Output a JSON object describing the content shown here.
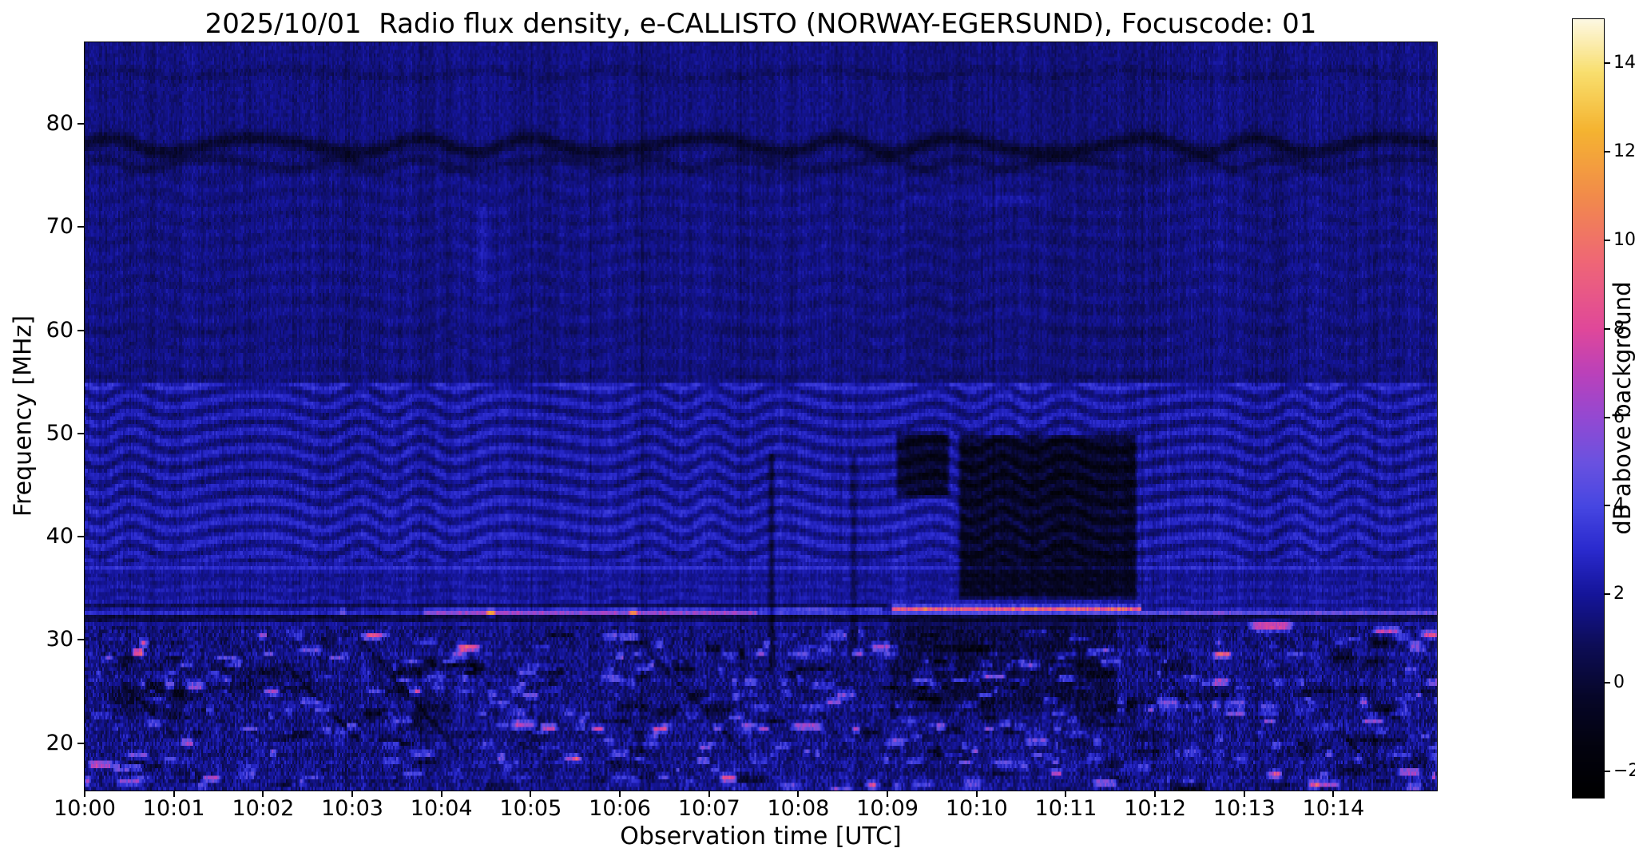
{
  "chart_data": {
    "type": "heatmap",
    "title": "2025/10/01  Radio flux density, e-CALLISTO (NORWAY-EGERSUND), Focuscode: 01",
    "xlabel": "Observation time [UTC]",
    "ylabel": "Frequency [MHz]",
    "x_ticks": [
      "10:00",
      "10:01",
      "10:02",
      "10:03",
      "10:04",
      "10:05",
      "10:06",
      "10:07",
      "10:08",
      "10:09",
      "10:10",
      "10:11",
      "10:12",
      "10:13",
      "10:14"
    ],
    "x_tick_minutes": [
      0,
      1,
      2,
      3,
      4,
      5,
      6,
      7,
      8,
      9,
      10,
      11,
      12,
      13,
      14
    ],
    "x_range_minutes": [
      0,
      15.16
    ],
    "y_ticks_mhz": [
      80,
      70,
      60,
      50,
      40,
      30,
      20
    ],
    "y_range_mhz": [
      15.4,
      87.9
    ],
    "colorbar": {
      "label": "dB above background",
      "tick_values": [
        14,
        12,
        10,
        8,
        6,
        4,
        2,
        0,
        -2
      ],
      "tick_labels": [
        "14",
        "12",
        "10",
        "8",
        "6",
        "4",
        "2",
        "0",
        "−2"
      ],
      "range_db": [
        -2.6,
        15
      ],
      "colormap": "cmrmap-like",
      "stops": [
        [
          -2.6,
          "#000000"
        ],
        [
          -1.4,
          "#030310"
        ],
        [
          -0.3,
          "#07072a"
        ],
        [
          0.8,
          "#0d0d55"
        ],
        [
          2.0,
          "#15159a"
        ],
        [
          3.0,
          "#2a2ace"
        ],
        [
          4.0,
          "#4747e2"
        ],
        [
          5.0,
          "#6b52e0"
        ],
        [
          6.0,
          "#9449d2"
        ],
        [
          7.0,
          "#bb41ba"
        ],
        [
          8.0,
          "#e0489a"
        ],
        [
          9.5,
          "#ef6677"
        ],
        [
          11.0,
          "#f28b4b"
        ],
        [
          12.5,
          "#f5b431"
        ],
        [
          13.8,
          "#f9df6e"
        ],
        [
          15.0,
          "#fdf8e2"
        ]
      ]
    },
    "features": {
      "seed": 42,
      "t_range": [
        0,
        15.16
      ],
      "f_range": [
        15.4,
        87.9
      ],
      "base_level_db": 1.9,
      "noise_db": 0.45,
      "column_noise_db": 0.55,
      "low_freq_below": 31.2,
      "low_freq_noise_scale": 2.3,
      "regions": [
        {
          "f": [
            55,
            87.9
          ],
          "delta": -0.35
        },
        {
          "f": [
            33.5,
            55
          ],
          "delta": 0.15
        },
        {
          "f": [
            38.5,
            43.5
          ],
          "delta": 0.2
        },
        {
          "f": [
            15.4,
            31.2
          ],
          "delta": -0.45
        },
        {
          "f": [
            55,
            87.9
          ],
          "t": [
            9.0,
            11.9
          ],
          "delta": -0.12
        }
      ],
      "ripples": [
        {
          "f": [
            37.5,
            55
          ],
          "amp": 0.8,
          "period_mhz": 1.7,
          "wobble": 2.2,
          "t_period": 1.05
        },
        {
          "f": [
            55,
            76
          ],
          "amp": 0.22,
          "period_mhz": 2.1,
          "wobble": 1.6,
          "t_period": 1.4
        },
        {
          "f": [
            31,
            36
          ],
          "amp": 0.3,
          "period_mhz": 1.2,
          "wobble": 1.5,
          "t_period": 0.9
        }
      ],
      "wavy_dark_lines": [
        {
          "f": 77.9,
          "amp": -1.7,
          "width": 0.7,
          "wobble_mhz": 0.7,
          "t_period": 1.6
        },
        {
          "f": 76.1,
          "amp": -0.8,
          "width": 0.5,
          "wobble_mhz": 0.5,
          "t_period": 1.2
        },
        {
          "f": 84.8,
          "amp": -0.5,
          "width": 0.5,
          "wobble_mhz": 0.4,
          "t_period": 1.9
        }
      ],
      "hlines": [
        {
          "f": 54.6,
          "amp": 0.7,
          "width": 0.3
        },
        {
          "f": 55.3,
          "amp": -0.45,
          "width": 0.3
        },
        {
          "f": 59.8,
          "amp": -0.25,
          "width": 0.4
        },
        {
          "f": 36.9,
          "amp": 1.1,
          "width": 0.25
        },
        {
          "f": 36.4,
          "amp": -0.6,
          "width": 0.18
        },
        {
          "f": 32.75,
          "amp": 1.6,
          "width": 0.2
        },
        {
          "f": 32.1,
          "amp": -1.9,
          "width": 0.35
        },
        {
          "f": 33.3,
          "amp": -1.0,
          "width": 0.25,
          "t": [
            0,
            9.0
          ]
        },
        {
          "f": 73.0,
          "amp": 0.65,
          "width": 0.3,
          "t": [
            9.2,
            11.0
          ]
        },
        {
          "f": 72.4,
          "amp": 0.4,
          "width": 0.25,
          "t": [
            9.3,
            10.9
          ]
        }
      ],
      "line_segments_33mhz": [
        {
          "t": [
            3.8,
            7.55
          ],
          "f": 32.7,
          "amp": 3.4,
          "width": 0.25
        },
        {
          "t": [
            7.55,
            8.95
          ],
          "f": 32.85,
          "amp": 2.2,
          "width": 0.22
        },
        {
          "t": [
            9.05,
            11.85
          ],
          "f": 33.0,
          "amp": 6.8,
          "width": 0.3
        },
        {
          "t": [
            11.85,
            15.16
          ],
          "f": 32.6,
          "amp": 1.8,
          "width": 0.22
        }
      ],
      "dark_patches": [
        {
          "t": [
            9.07,
            9.72
          ],
          "f": [
            43.5,
            50.5
          ],
          "depth": -2.6,
          "striation": 0.5
        },
        {
          "t": [
            9.78,
            11.82
          ],
          "f": [
            33.6,
            50.2
          ],
          "depth": -2.8,
          "striation": 0.6
        },
        {
          "t": [
            9.0,
            11.6
          ],
          "f": [
            22.5,
            32.5
          ],
          "depth": -1.1,
          "striation": 0
        },
        {
          "t": [
            0.25,
            1.15
          ],
          "f": [
            22.5,
            26.0
          ],
          "depth": -1.0,
          "striation": 0
        },
        {
          "t": [
            1.5,
            2.6
          ],
          "f": [
            24.5,
            27.5
          ],
          "depth": -0.8,
          "striation": 0
        }
      ],
      "vlines": [
        {
          "t": 7.7,
          "f": [
            27,
            48
          ],
          "amp": -1.8,
          "width": 0.03
        },
        {
          "t": 8.62,
          "f": [
            27,
            48
          ],
          "amp": -1.5,
          "width": 0.03
        },
        {
          "t": 4.45,
          "f": [
            64,
            72
          ],
          "amp": 0.5,
          "width": 0.08
        }
      ],
      "diagonal_sweeps": [
        {
          "t0": 0.4,
          "f0": 26,
          "t1": 1.2,
          "f1": 19,
          "w": 0.3,
          "amp": -1.0
        },
        {
          "t0": 2.2,
          "f0": 28,
          "t1": 3.1,
          "f1": 20,
          "w": 0.35,
          "amp": -1.2
        },
        {
          "t0": 3.1,
          "f0": 30,
          "t1": 4.2,
          "f1": 19,
          "w": 0.4,
          "amp": -1.4
        },
        {
          "t0": 4.3,
          "f0": 28,
          "t1": 5.1,
          "f1": 20,
          "w": 0.3,
          "amp": -1.0
        },
        {
          "t0": 6.3,
          "f0": 29,
          "t1": 7.3,
          "f1": 20,
          "w": 0.35,
          "amp": -1.3
        },
        {
          "t0": 7.9,
          "f0": 27,
          "t1": 8.6,
          "f1": 19,
          "w": 0.3,
          "amp": -1.0
        },
        {
          "t0": 12.1,
          "f0": 27,
          "t1": 12.9,
          "f1": 18,
          "w": 0.3,
          "amp": -1.1
        },
        {
          "t0": 13.6,
          "f0": 26,
          "t1": 14.4,
          "f1": 18,
          "w": 0.3,
          "amp": -1.0
        }
      ],
      "texture_bands": {
        "freqs": [
          28.6,
          26.1,
          23.6,
          21.5,
          19.8,
          18.1,
          16.6,
          15.8
        ],
        "amp": 0.42,
        "width": 0.3
      },
      "bright_spots": [
        {
          "t": 0.18,
          "f": 17.9,
          "len": 0.3,
          "amp": 6.5
        },
        {
          "t": 0.5,
          "f": 16.2,
          "len": 0.3,
          "amp": 4.5
        },
        {
          "t": 0.95,
          "f": 25.6,
          "len": 0.12,
          "amp": 5.0
        },
        {
          "t": 2.0,
          "f": 30.4,
          "len": 0.1,
          "amp": 4.5
        },
        {
          "t": 2.9,
          "f": 32.8,
          "len": 0.08,
          "amp": 3.0
        },
        {
          "t": 3.0,
          "f": 21.7,
          "len": 0.15,
          "amp": 4.0
        },
        {
          "t": 3.75,
          "f": 25.0,
          "len": 0.1,
          "amp": 3.5
        },
        {
          "t": 4.55,
          "f": 32.6,
          "len": 0.12,
          "amp": 5.5
        },
        {
          "t": 5.2,
          "f": 21.5,
          "len": 0.2,
          "amp": 6.5
        },
        {
          "t": 5.45,
          "f": 18.6,
          "len": 0.2,
          "amp": 4.5
        },
        {
          "t": 5.75,
          "f": 21.4,
          "len": 0.15,
          "amp": 5.5
        },
        {
          "t": 6.0,
          "f": 28.4,
          "len": 0.1,
          "amp": 4.5
        },
        {
          "t": 6.15,
          "f": 32.6,
          "len": 0.1,
          "amp": 4.5
        },
        {
          "t": 6.45,
          "f": 21.3,
          "len": 0.2,
          "amp": 6.0
        },
        {
          "t": 7.1,
          "f": 21.5,
          "len": 0.12,
          "amp": 4.5
        },
        {
          "t": 7.3,
          "f": 24.5,
          "len": 0.1,
          "amp": 4.0
        },
        {
          "t": 7.62,
          "f": 21.4,
          "len": 0.15,
          "amp": 5.0
        },
        {
          "t": 8.1,
          "f": 21.6,
          "len": 0.4,
          "amp": 5.5
        },
        {
          "t": 8.4,
          "f": 24.0,
          "len": 0.2,
          "amp": 4.5
        },
        {
          "t": 8.65,
          "f": 21.3,
          "len": 0.1,
          "amp": 4.5
        },
        {
          "t": 9.6,
          "f": 21.5,
          "len": 0.12,
          "amp": 5.0
        },
        {
          "t": 10.2,
          "f": 26.5,
          "len": 0.3,
          "amp": 4.5
        },
        {
          "t": 11.0,
          "f": 26.3,
          "len": 0.2,
          "amp": 4.0
        },
        {
          "t": 12.75,
          "f": 28.5,
          "len": 0.25,
          "amp": 5.0
        },
        {
          "t": 13.3,
          "f": 31.3,
          "len": 0.55,
          "amp": 7.0,
          "w": 0.45
        },
        {
          "t": 13.9,
          "f": 16.0,
          "len": 0.4,
          "amp": 5.0
        },
        {
          "t": 14.6,
          "f": 30.9,
          "len": 0.35,
          "amp": 6.0
        },
        {
          "t": 14.85,
          "f": 17.2,
          "len": 0.3,
          "amp": 6.0
        }
      ],
      "random_streaks": {
        "count": 420,
        "f": [
          15.4,
          30.8
        ],
        "len": [
          0.04,
          0.3
        ],
        "amp": [
          0.8,
          3.5
        ],
        "width": [
          0.15,
          0.45
        ],
        "bright_fraction": 0.06,
        "bright_amp": [
          4.0,
          6.5
        ]
      },
      "random_dark_streaks": {
        "count": 160,
        "f": [
          15.4,
          30.5
        ],
        "len": [
          0.1,
          0.5
        ],
        "amp": [
          -2.0,
          -0.8
        ],
        "width": [
          0.2,
          0.5
        ]
      }
    }
  }
}
